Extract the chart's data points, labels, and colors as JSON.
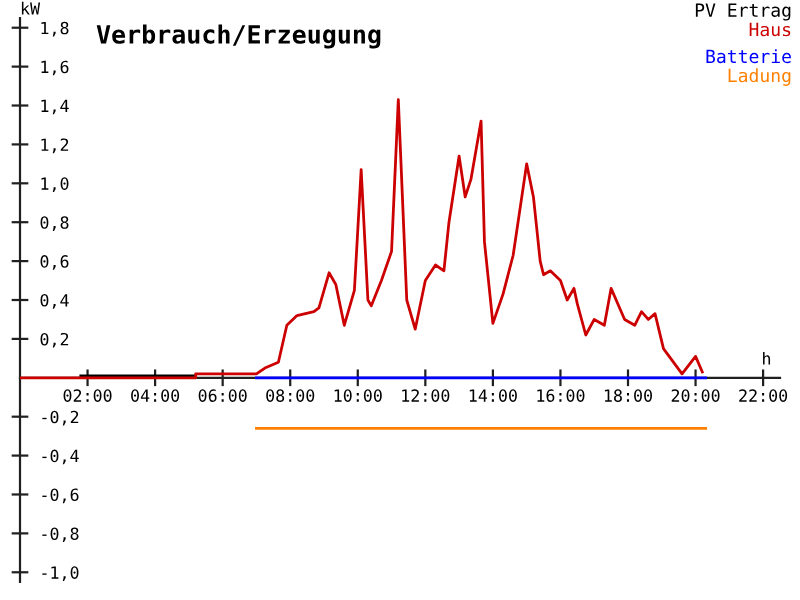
{
  "chart_data": {
    "type": "line",
    "title": "Verbrauch/Erzeugung",
    "xlabel": "h",
    "ylabel": "kW",
    "xlim": [
      0,
      22.5
    ],
    "ylim": [
      -1.05,
      1.85
    ],
    "xticks": [
      {
        "value": 2,
        "label": "02:00"
      },
      {
        "value": 4,
        "label": "04:00"
      },
      {
        "value": 6,
        "label": "06:00"
      },
      {
        "value": 8,
        "label": "08:00"
      },
      {
        "value": 10,
        "label": "10:00"
      },
      {
        "value": 12,
        "label": "12:00"
      },
      {
        "value": 14,
        "label": "14:00"
      },
      {
        "value": 16,
        "label": "16:00"
      },
      {
        "value": 18,
        "label": "18:00"
      },
      {
        "value": 20,
        "label": "20:00"
      },
      {
        "value": 22,
        "label": "22:00"
      }
    ],
    "yticks": [
      {
        "value": -1.0,
        "label": "-1,0"
      },
      {
        "value": -0.8,
        "label": "-0,8"
      },
      {
        "value": -0.6,
        "label": "-0,6"
      },
      {
        "value": -0.4,
        "label": "-0,4"
      },
      {
        "value": -0.2,
        "label": "-0,2"
      },
      {
        "value": 0.2,
        "label": "0,2"
      },
      {
        "value": 0.4,
        "label": "0,4"
      },
      {
        "value": 0.6,
        "label": "0,6"
      },
      {
        "value": 0.8,
        "label": "0,8"
      },
      {
        "value": 1.0,
        "label": "1,0"
      },
      {
        "value": 1.2,
        "label": "1,2"
      },
      {
        "value": 1.4,
        "label": "1,4"
      },
      {
        "value": 1.6,
        "label": "1,6"
      },
      {
        "value": 1.8,
        "label": "1,8"
      }
    ],
    "grid": false,
    "legend": "top right",
    "marker": "none",
    "line_style": "solid",
    "series": [
      {
        "name": "PV Ertrag",
        "color": "#000000",
        "x": [
          1.8,
          5.2
        ],
        "values": [
          0.01,
          0.01
        ]
      },
      {
        "name": "Haus",
        "color": "#cc0000",
        "x": [
          0,
          5.2,
          5.2,
          7.0,
          7.25,
          7.65,
          7.9,
          8.2,
          8.7,
          8.85,
          9.0,
          9.15,
          9.35,
          9.6,
          9.9,
          10.1,
          10.3,
          10.4,
          10.7,
          11.0,
          11.2,
          11.45,
          11.7,
          12.0,
          12.3,
          12.55,
          12.7,
          13.0,
          13.18,
          13.35,
          13.65,
          13.75,
          14.0,
          14.3,
          14.6,
          15.0,
          15.2,
          15.4,
          15.5,
          15.7,
          16.0,
          16.2,
          16.4,
          16.5,
          16.75,
          17.0,
          17.3,
          17.5,
          17.9,
          18.2,
          18.4,
          18.6,
          18.8,
          19.05,
          19.6,
          20.0,
          20.2
        ],
        "values": [
          0,
          0,
          0.02,
          0.02,
          0.05,
          0.08,
          0.27,
          0.32,
          0.34,
          0.36,
          0.45,
          0.54,
          0.48,
          0.27,
          0.45,
          1.07,
          0.4,
          0.37,
          0.5,
          0.65,
          1.43,
          0.4,
          0.25,
          0.5,
          0.58,
          0.55,
          0.8,
          1.14,
          0.93,
          1.02,
          1.32,
          0.7,
          0.28,
          0.43,
          0.63,
          1.1,
          0.93,
          0.6,
          0.53,
          0.55,
          0.5,
          0.4,
          0.46,
          0.38,
          0.22,
          0.3,
          0.27,
          0.46,
          0.3,
          0.27,
          0.34,
          0.3,
          0.33,
          0.15,
          0.02,
          0.11,
          0.03
        ]
      },
      {
        "name": "Batterie",
        "color": "#0000ff",
        "x": [
          7.0,
          20.3
        ],
        "values": [
          0,
          0
        ]
      },
      {
        "name": "Ladung",
        "color": "#ff8000",
        "x": [
          7.0,
          20.3
        ],
        "values": [
          -0.26,
          -0.26
        ]
      }
    ]
  }
}
